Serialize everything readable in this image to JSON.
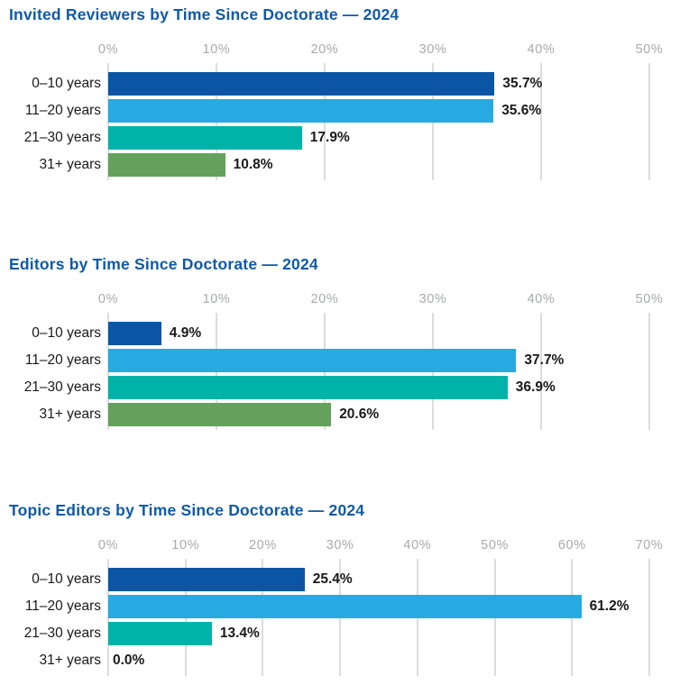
{
  "colors": {
    "title_blue": "#0f5aa7",
    "axis_label_gray": "#a7a9ab",
    "gridline_gray": "#dcdcdd",
    "text_dark": "#191919",
    "bar_palette": [
      "#0b55a4",
      "#27aae1",
      "#00b3a9",
      "#63a15c"
    ]
  },
  "chart_data": [
    {
      "type": "bar",
      "orientation": "horizontal",
      "title": "Invited Reviewers by Time Since Doctorate — 2024",
      "categories": [
        "0–10 years",
        "11–20 years",
        "21–30 years",
        "31+ years"
      ],
      "values": [
        35.7,
        35.6,
        17.9,
        10.8
      ],
      "value_labels": [
        "35.7%",
        "35.6%",
        "17.9%",
        "10.8%"
      ],
      "bar_colors": [
        "#0b55a4",
        "#27aae1",
        "#00b3a9",
        "#63a15c"
      ],
      "axis": {
        "min": 0,
        "max": 50,
        "tick_labels": [
          "0%",
          "10%",
          "20%",
          "30%",
          "40%",
          "50%"
        ],
        "position": "top",
        "grid": true
      },
      "legend": false
    },
    {
      "type": "bar",
      "orientation": "horizontal",
      "title": "Editors by Time Since Doctorate — 2024",
      "categories": [
        "0–10 years",
        "11–20 years",
        "21–30 years",
        "31+ years"
      ],
      "values": [
        4.9,
        37.7,
        36.9,
        20.6
      ],
      "value_labels": [
        "4.9%",
        "37.7%",
        "36.9%",
        "20.6%"
      ],
      "bar_colors": [
        "#0b55a4",
        "#27aae1",
        "#00b3a9",
        "#63a15c"
      ],
      "axis": {
        "min": 0,
        "max": 50,
        "tick_labels": [
          "0%",
          "10%",
          "20%",
          "30%",
          "40%",
          "50%"
        ],
        "position": "top",
        "grid": true
      },
      "legend": false
    },
    {
      "type": "bar",
      "orientation": "horizontal",
      "title": "Topic Editors by Time Since Doctorate — 2024",
      "categories": [
        "0–10 years",
        "11–20 years",
        "21–30 years",
        "31+ years"
      ],
      "values": [
        25.4,
        61.2,
        13.4,
        0.0
      ],
      "value_labels": [
        "25.4%",
        "61.2%",
        "13.4%",
        "0.0%"
      ],
      "bar_colors": [
        "#0b55a4",
        "#27aae1",
        "#00b3a9",
        "#63a15c"
      ],
      "axis": {
        "min": 0,
        "max": 70,
        "tick_labels": [
          "0%",
          "10%",
          "20%",
          "30%",
          "40%",
          "50%",
          "60%",
          "70%"
        ],
        "position": "top",
        "grid": true
      },
      "legend": false
    }
  ]
}
